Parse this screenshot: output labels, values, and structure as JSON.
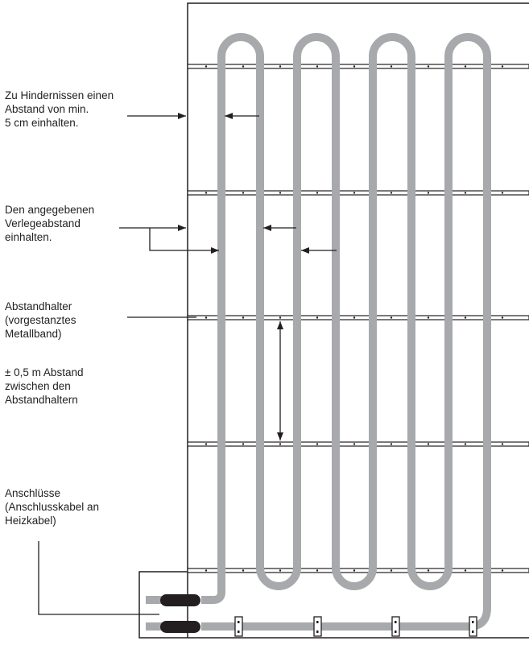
{
  "annotations": {
    "obstacle_distance": "Zu Hindernissen einen\nAbstand von min.\n5 cm einhalten.",
    "laying_distance": "Den angegebenen\nVerlegeabstand\neinhalten.",
    "spacer": "Abstandhalter\n(vorgestanztes\nMetallband)",
    "spacer_distance": "± 0,5 m Abstand\nzwischen den\nAbstandhaltern",
    "connections": "Anschlüsse\n(Anschlusskabel an\nHeizkabel)"
  },
  "colors": {
    "cable": "#a7a9ac",
    "cable_joint": "#231f20",
    "outline": "#231f20"
  }
}
